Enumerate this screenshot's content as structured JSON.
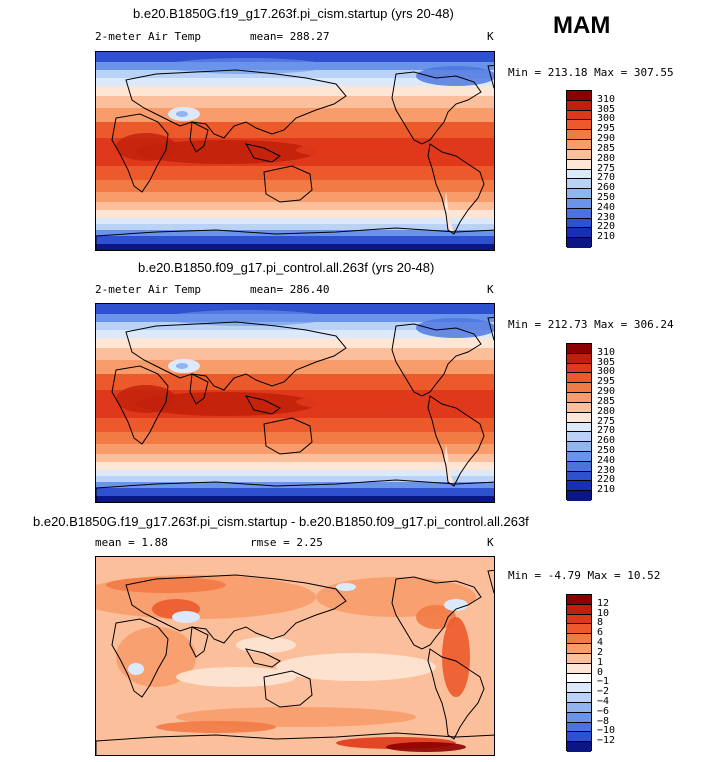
{
  "season": "MAM",
  "panels": [
    {
      "title": "b.e20.B1850G.f19_g17.263f.pi_cism.startup (yrs 20-48)",
      "variable": "2-meter Air Temp",
      "mean_label": "mean=",
      "mean_value": "288.27",
      "units": "K",
      "min_label": "Min =",
      "min_value": "213.18",
      "max_label": "Max =",
      "max_value": "307.55",
      "colorbar": {
        "labels": [
          "310",
          "305",
          "300",
          "295",
          "290",
          "285",
          "280",
          "275",
          "270",
          "260",
          "250",
          "240",
          "230",
          "220",
          "210"
        ],
        "colors": [
          "#8b0000",
          "#c0200b",
          "#e0381a",
          "#ec5a2c",
          "#f27a45",
          "#f79c6a",
          "#fbbf9b",
          "#fde6d6",
          "#dbe9fa",
          "#b9d2f6",
          "#8fb4f0",
          "#6a94ea",
          "#4a73e0",
          "#2e52cf",
          "#1830b0",
          "#0a1685"
        ]
      }
    },
    {
      "title": "b.e20.B1850.f09_g17.pi_control.all.263f (yrs 20-48)",
      "variable": "2-meter Air Temp",
      "mean_label": "mean=",
      "mean_value": "286.40",
      "units": "K",
      "min_label": "Min =",
      "min_value": "212.73",
      "max_label": "Max =",
      "max_value": "306.24",
      "colorbar": {
        "labels": [
          "310",
          "305",
          "300",
          "295",
          "290",
          "285",
          "280",
          "275",
          "270",
          "260",
          "250",
          "240",
          "230",
          "220",
          "210"
        ],
        "colors": [
          "#8b0000",
          "#c0200b",
          "#e0381a",
          "#ec5a2c",
          "#f27a45",
          "#f79c6a",
          "#fbbf9b",
          "#fde6d6",
          "#dbe9fa",
          "#b9d2f6",
          "#8fb4f0",
          "#6a94ea",
          "#4a73e0",
          "#2e52cf",
          "#1830b0",
          "#0a1685"
        ]
      }
    },
    {
      "title": "b.e20.B1850G.f19_g17.263f.pi_cism.startup - b.e20.B1850.f09_g17.pi_control.all.263f",
      "mean_label": "mean =",
      "mean_value": "1.88",
      "rmse_label": "rmse =",
      "rmse_value": "2.25",
      "units": "K",
      "min_label": "Min =",
      "min_value": "-4.79",
      "max_label": "Max =",
      "max_value": "10.52",
      "colorbar": {
        "labels": [
          "12",
          "10",
          "8",
          "6",
          "4",
          "2",
          "1",
          "0",
          "−1",
          "−2",
          "−4",
          "−6",
          "−8",
          "−10",
          "−12"
        ],
        "colors": [
          "#8b0000",
          "#c0200b",
          "#e0381a",
          "#ec5a2c",
          "#f27a45",
          "#f79c6a",
          "#fbbf9b",
          "#fde6d6",
          "#ffffff",
          "#dbe9fa",
          "#b9d2f6",
          "#8fb4f0",
          "#6a94ea",
          "#4a73e0",
          "#2e52cf",
          "#0a1685"
        ]
      }
    }
  ]
}
